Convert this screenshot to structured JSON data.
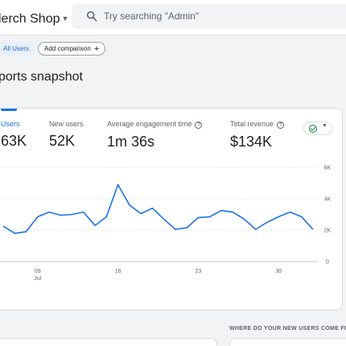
{
  "header": {
    "property_name": "lerch Shop",
    "search_placeholder": "Try searching \"Admin\"",
    "icons": {
      "search": "search-icon",
      "caret": "caret-down-icon"
    }
  },
  "comparison": {
    "all_users_label": "All Users",
    "add_comparison_label": "Add comparison",
    "add_icon": "plus-icon"
  },
  "page": {
    "title": "ports snapshot"
  },
  "metrics": [
    {
      "label": "Users",
      "value": "63K",
      "active": true
    },
    {
      "label": "New users",
      "value": "52K"
    },
    {
      "label": "Average engagement time",
      "value": "1m 36s",
      "info": true
    },
    {
      "label": "Total revenue",
      "value": "$134K",
      "info": true
    }
  ],
  "colors": {
    "accent": "#1a73e8",
    "ok": "#188038"
  },
  "chart_data": {
    "type": "line",
    "title": "",
    "xlabel": "",
    "ylabel": "",
    "x_ticks": [
      {
        "label": "09",
        "sub": "Jul",
        "index": 3
      },
      {
        "label": "16",
        "index": 10
      },
      {
        "label": "23",
        "index": 17
      },
      {
        "label": "30",
        "index": 24
      }
    ],
    "y_ticks": [
      "0",
      "2K",
      "4K",
      "6K"
    ],
    "ylim": [
      0,
      6000
    ],
    "series": [
      {
        "values": [
          2250,
          1800,
          1900,
          2850,
          3150,
          2950,
          3000,
          3150,
          2300,
          2850,
          4900,
          3600,
          3050,
          3400,
          2700,
          2050,
          2150,
          2800,
          2850,
          3250,
          3150,
          2700,
          2050,
          2500,
          2850,
          3150,
          2850,
          2050
        ]
      }
    ],
    "grid": true
  }
}
